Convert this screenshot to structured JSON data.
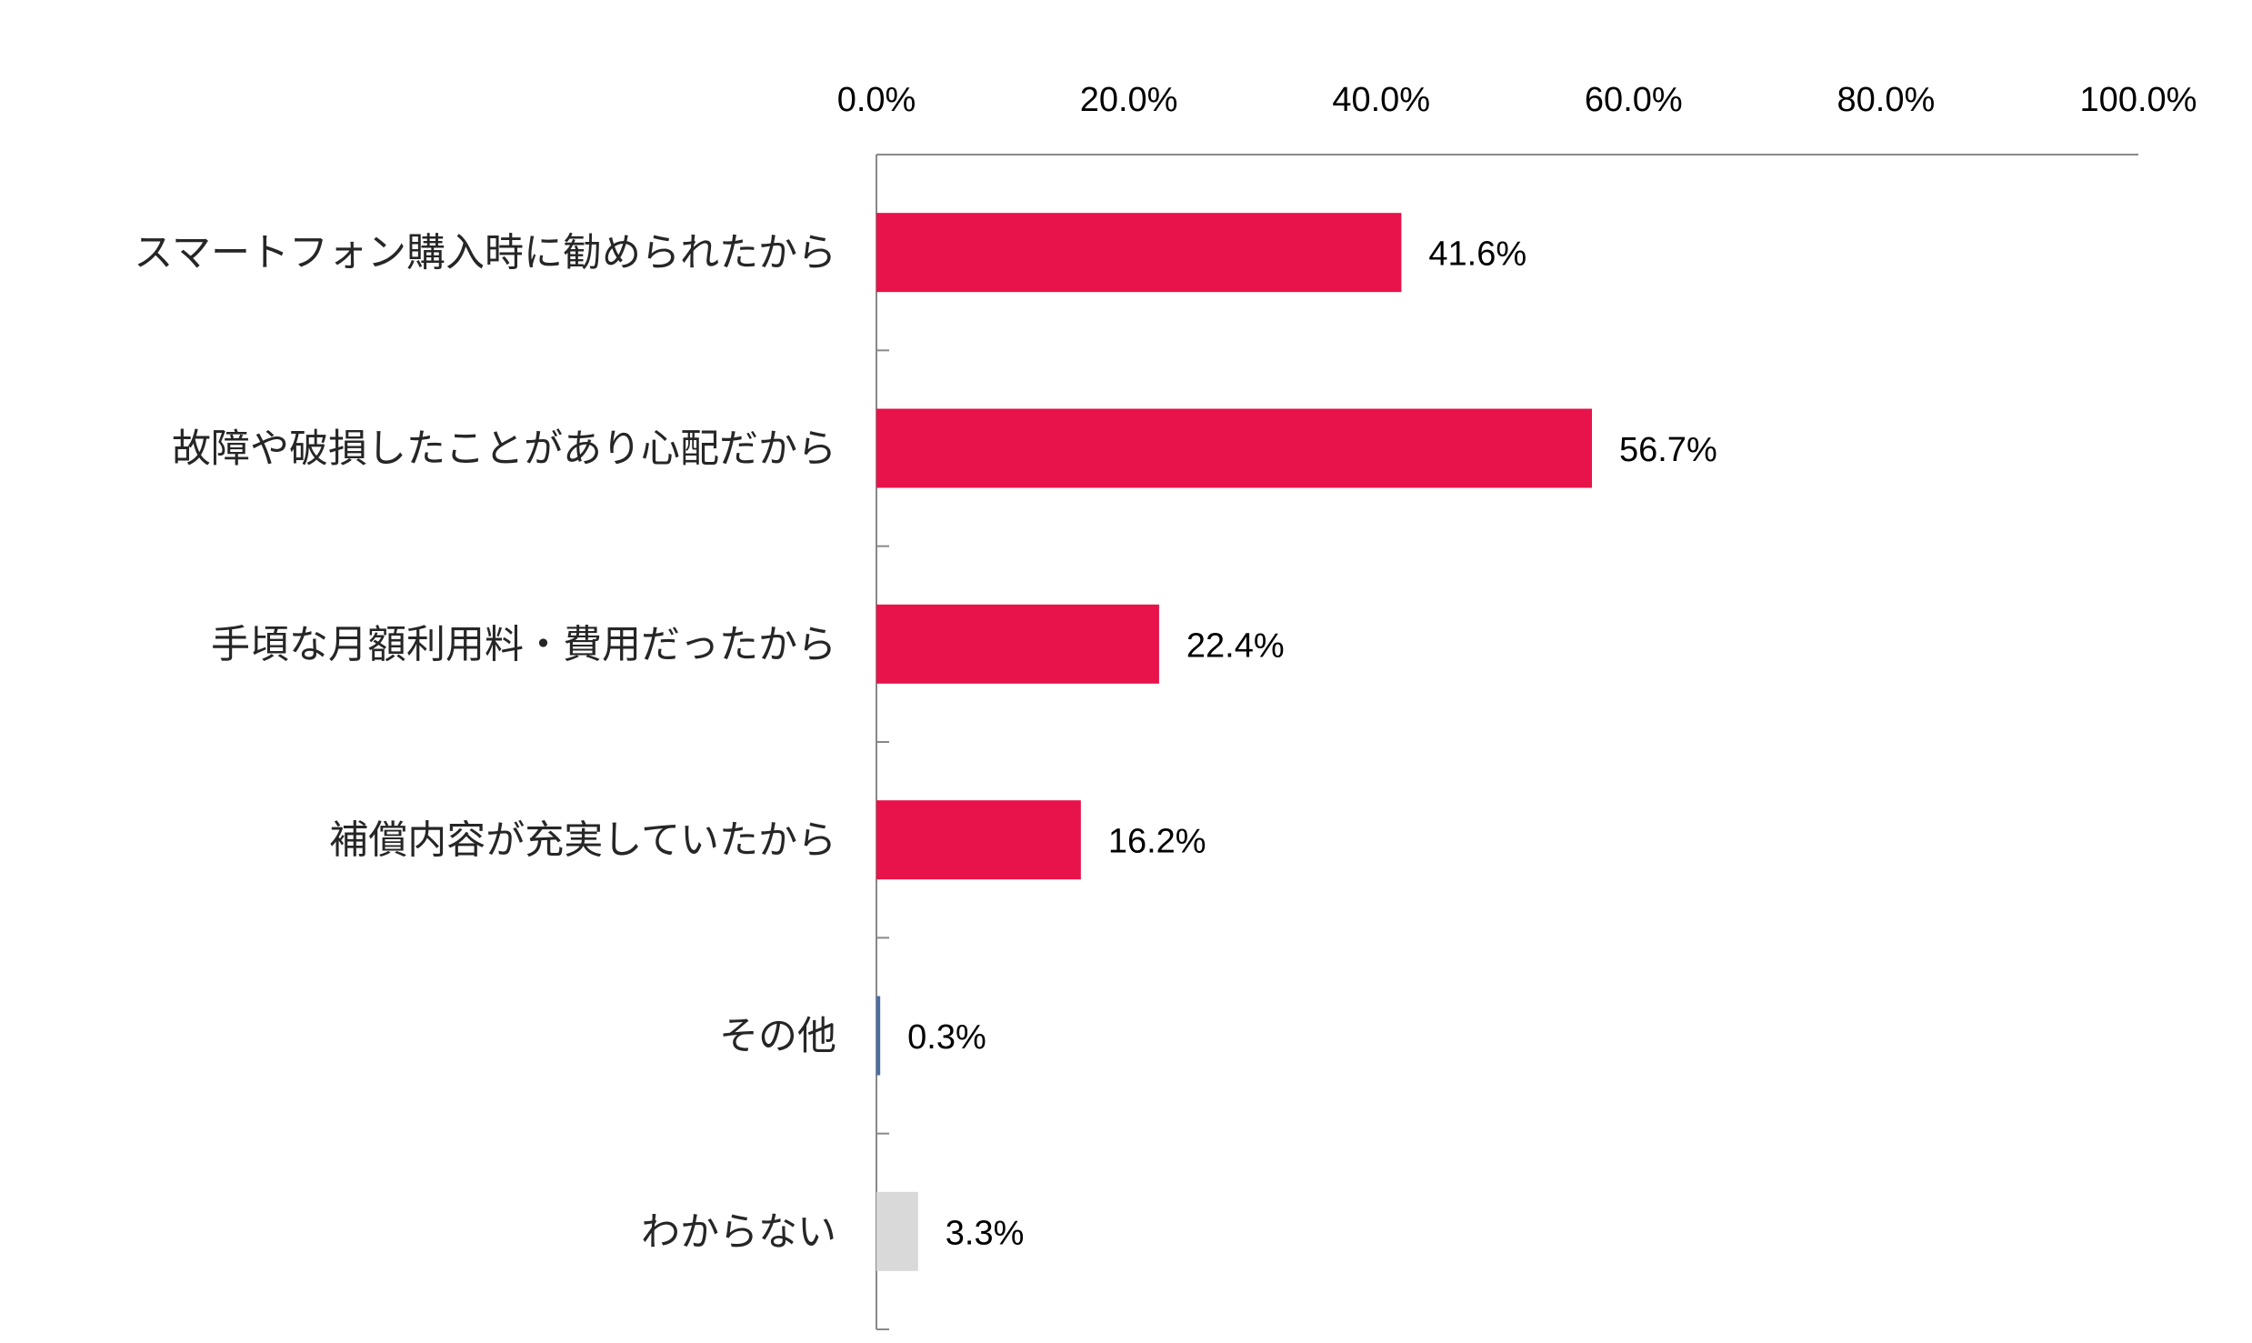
{
  "chart_data": {
    "type": "bar",
    "orientation": "horizontal",
    "title": "",
    "xlabel": "",
    "ylabel": "",
    "xlim": [
      0,
      100
    ],
    "x_ticks": [
      "0.0%",
      "20.0%",
      "40.0%",
      "60.0%",
      "80.0%",
      "100.0%"
    ],
    "x_axis_position": "top",
    "grid": false,
    "legend": "none",
    "categories": [
      "スマートフォン購入時に勧められたから",
      "故障や破損したことがあり心配だから",
      "手頃な月額利用料・費用だったから",
      "補償内容が充実していたから",
      "その他",
      "わからない"
    ],
    "values": [
      41.6,
      56.7,
      22.4,
      16.2,
      0.3,
      3.3
    ],
    "value_labels": [
      "41.6%",
      "56.7%",
      "22.4%",
      "16.2%",
      "0.3%",
      "3.3%"
    ],
    "colors": [
      "#e8134a",
      "#e8134a",
      "#e8134a",
      "#e8134a",
      "#4a6fa5",
      "#d9d9d9"
    ],
    "axis_color": "#888888"
  }
}
